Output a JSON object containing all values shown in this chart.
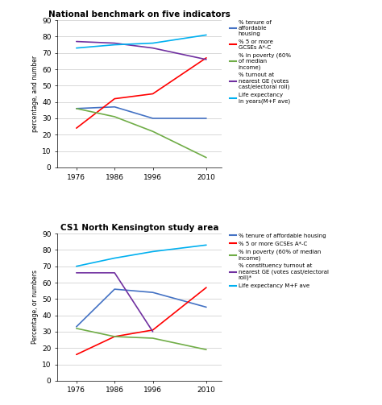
{
  "years": [
    1976,
    1986,
    1996,
    2010
  ],
  "top": {
    "title": "National benchmark on five indicators",
    "ylabel": "percentage, and number",
    "ylim": [
      0,
      90
    ],
    "yticks": [
      0,
      10,
      20,
      30,
      40,
      50,
      60,
      70,
      80,
      90
    ],
    "series": [
      {
        "label": "% tenure of\naffordable\nhousing",
        "color": "#4472C4",
        "values": [
          36,
          37,
          30,
          30
        ]
      },
      {
        "label": "% 5 or more\nGCSEs A*-C",
        "color": "#FF0000",
        "values": [
          24,
          42,
          45,
          67
        ]
      },
      {
        "label": "% in poverty (60%\nof median\nincome)",
        "color": "#70AD47",
        "values": [
          36,
          31,
          22,
          6
        ]
      },
      {
        "label": "% turnout at\nnearest GE (votes\ncast/electoral roll)",
        "color": "#7030A0",
        "values": [
          77,
          76,
          73,
          66
        ]
      },
      {
        "label": "Life expectancy\nin years(M+F ave)",
        "color": "#00B0F0",
        "values": [
          73,
          75,
          76,
          81
        ]
      }
    ]
  },
  "bottom": {
    "title": "CS1 North Kensington study area",
    "ylabel": "Percentage, or numbers",
    "ylim": [
      0,
      90
    ],
    "yticks": [
      0,
      10,
      20,
      30,
      40,
      50,
      60,
      70,
      80,
      90
    ],
    "series": [
      {
        "label": "% tenure of affordable housing",
        "color": "#4472C4",
        "values": [
          33,
          56,
          54,
          45
        ]
      },
      {
        "label": "% 5 or more GCSEs A*-C",
        "color": "#FF0000",
        "values": [
          16,
          27,
          31,
          57
        ]
      },
      {
        "label": "% in poverty (60% of median\nincome)",
        "color": "#70AD47",
        "values": [
          32,
          27,
          26,
          19
        ]
      },
      {
        "label": "% constituency turnout at\nnearest GE (votes cast/electoral\nroll)*",
        "color": "#7030A0",
        "values": [
          66,
          66,
          30,
          null
        ]
      },
      {
        "label": "Life expectancy M+F ave",
        "color": "#00B0F0",
        "values": [
          70,
          75,
          79,
          83
        ]
      }
    ]
  }
}
